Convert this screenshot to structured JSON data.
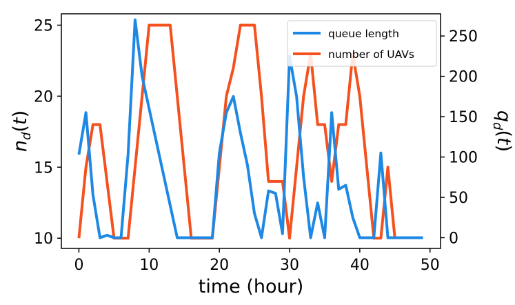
{
  "chart_data": {
    "type": "line",
    "xlabel": "time (hour)",
    "ylabel_left": "n_d(t)",
    "ylabel_right": "q_d(t)",
    "xlim": [
      -2.5,
      51.5
    ],
    "ylim_left": [
      9.28,
      25.8
    ],
    "ylim_right": [
      -13.3,
      277.5
    ],
    "x_ticks": [
      0,
      10,
      20,
      30,
      40,
      50
    ],
    "y_ticks_left": [
      10,
      15,
      20,
      25
    ],
    "y_ticks_right": [
      0,
      50,
      100,
      150,
      200,
      250
    ],
    "grid": false,
    "legend_position": "top-right",
    "legend": [
      "queue length",
      "number of UAVs"
    ],
    "series": [
      {
        "name": "queue length",
        "axis": "right",
        "color": "#1e88e5",
        "x": [
          0,
          1,
          2,
          3,
          4,
          5,
          6,
          7,
          8,
          9,
          10,
          11,
          12,
          13,
          14,
          15,
          16,
          17,
          18,
          19,
          20,
          21,
          22,
          23,
          24,
          25,
          26,
          27,
          28,
          29,
          30,
          31,
          32,
          33,
          34,
          35,
          36,
          37,
          38,
          39,
          40,
          41,
          42,
          43,
          44,
          45,
          46,
          47,
          48,
          49
        ],
        "values": [
          103,
          155,
          53,
          0,
          3,
          0,
          0,
          103,
          270,
          200,
          160,
          120,
          80,
          40,
          0,
          0,
          0,
          0,
          0,
          0,
          105,
          155,
          175,
          130,
          90,
          30,
          0,
          58,
          55,
          5,
          225,
          175,
          75,
          0,
          43,
          0,
          155,
          60,
          65,
          25,
          0,
          0,
          0,
          105,
          0,
          0,
          0,
          0,
          0,
          0
        ]
      },
      {
        "name": "number of UAVs",
        "axis": "left",
        "color": "#f4511e",
        "x": [
          0,
          1,
          2,
          3,
          4,
          5,
          6,
          7,
          8,
          9,
          10,
          11,
          12,
          13,
          14,
          15,
          16,
          17,
          18,
          19,
          20,
          21,
          22,
          23,
          24,
          25,
          26,
          27,
          28,
          29,
          30,
          31,
          32,
          33,
          34,
          35,
          36,
          37,
          38,
          39,
          40,
          41,
          42,
          43,
          44,
          45
        ],
        "values": [
          10,
          15,
          18,
          18,
          14,
          10,
          10,
          10,
          15,
          20,
          25,
          25,
          25,
          25,
          20,
          15,
          10,
          10,
          10,
          10,
          15,
          20,
          22,
          25,
          25,
          25,
          20,
          14,
          14,
          14,
          10,
          15,
          20,
          23,
          18,
          18,
          14,
          18,
          18,
          23,
          20,
          15,
          10,
          10,
          15,
          10
        ]
      }
    ]
  }
}
